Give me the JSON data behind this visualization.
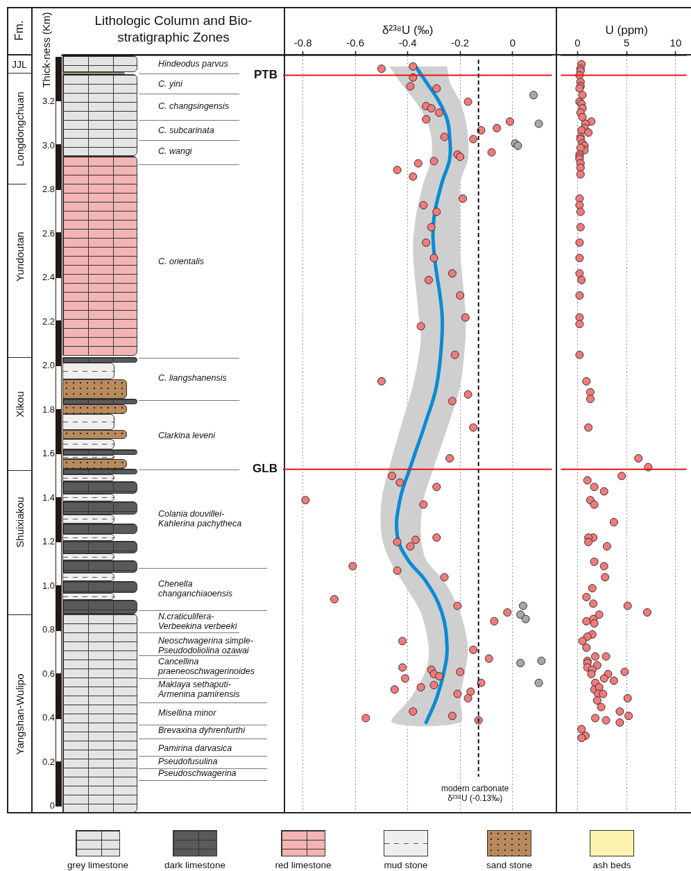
{
  "chart_data": [
    {
      "type": "other",
      "title": "Lithologic Column and Bio-stratigraphic Zones",
      "annotations": [
        "Fm.",
        "JJL",
        "Longdongchuan",
        "Yundoutan",
        "Xikou",
        "Shuixiakou",
        "Yangshan-Wulipo",
        "Hindeodus parvus",
        "C. yini",
        "C. changsingensis",
        "C. subcarinata",
        "C.  wangi",
        "C. orientalis",
        "C. liangshanensis",
        "Clarkina leveni",
        "Colania douvillei-\nKahlerina pachytheca",
        "Chenella\nchanganchiaoensis",
        "N.craticulifera-\nVerbeekina verbeeki",
        "Neoschwagerina simple-\nPseudodoliolina ozawai",
        "Cancellina\npraeneoschwagerinoides",
        "Maklaya sethaputi-\nArmenina pamirensis",
        "Misellina minor",
        "Brevaxina dyhrenfurthi",
        "Pamirina darvasica",
        "Pseudofusulina",
        "Pseudoschwagerina",
        "grey limestone",
        "dark limestone",
        "red limestone",
        "mud stone",
        "sand stone",
        "ash beds"
      ]
    },
    {
      "type": "scatter",
      "xlabel": "δ²³⁸U (‰)",
      "ylabel": "Thick-ness (Km)",
      "xticks": [
        -0.8,
        -0.6,
        -0.4,
        -0.2,
        0
      ],
      "ylim": [
        -0.03,
        3.41
      ],
      "yticks": [
        0,
        0.2,
        0.4,
        0.6,
        0.8,
        {
          "value": 1,
          "label": "1.0"
        },
        1.2,
        1.4,
        1.6,
        1.8,
        {
          "value": 2,
          "label": "2.0"
        },
        2.2,
        2.4,
        2.6,
        2.8,
        {
          "value": 3,
          "label": "3.0"
        },
        3.2
      ],
      "grid": "x",
      "marker": "circle",
      "xlim": [
        -1.72,
        0.15
      ],
      "series": [
        {
          "type": "scatter",
          "color": "#ef7b7b",
          "x": [
            -0.5,
            -0.38,
            -0.38,
            -0.39,
            -0.29,
            -0.17,
            -0.33,
            -0.31,
            -0.28,
            -0.33,
            -0.01,
            -0.06,
            -0.12,
            -0.26,
            -0.15,
            -0.08,
            -0.21,
            -0.2,
            -0.3,
            -0.36,
            -0.44,
            -0.38,
            -0.19,
            -0.34,
            -0.29,
            -0.31,
            -0.33,
            -0.3,
            -0.23,
            -0.32,
            -0.2,
            -0.18,
            -0.35,
            -0.22,
            -0.5,
            -0.17,
            -0.23,
            -0.15,
            -0.24,
            -0.46,
            -0.43,
            -0.29,
            -0.79,
            -0.34,
            -0.29,
            -0.37,
            -0.44,
            -0.39,
            -0.61,
            -0.44,
            -0.26,
            -0.68,
            -0.21,
            -0.02,
            -0.07,
            -0.42,
            -0.15,
            -0.09,
            -0.42,
            -0.31,
            -0.3,
            -0.28,
            -0.2,
            -0.41,
            -0.12,
            -0.3,
            -0.35,
            -0.45,
            -0.21,
            -0.16,
            -0.17,
            -0.38,
            -0.23,
            -0.13,
            -0.56
          ],
          "values": [
            3.35,
            3.36,
            3.31,
            3.27,
            3.26,
            3.2,
            3.18,
            3.17,
            3.15,
            3.12,
            3.11,
            3.08,
            3.07,
            3.04,
            3.03,
            2.97,
            2.96,
            2.95,
            2.93,
            2.92,
            2.89,
            2.86,
            2.76,
            2.73,
            2.7,
            2.63,
            2.56,
            2.49,
            2.42,
            2.39,
            2.32,
            2.22,
            2.18,
            2.05,
            1.93,
            1.87,
            1.84,
            1.72,
            1.58,
            1.5,
            1.47,
            1.45,
            1.39,
            1.37,
            1.22,
            1.21,
            1.2,
            1.18,
            1.09,
            1.07,
            1.04,
            0.94,
            0.91,
            0.88,
            0.84,
            0.75,
            0.71,
            0.67,
            0.63,
            0.62,
            0.6,
            0.59,
            0.61,
            0.58,
            0.56,
            0.55,
            0.54,
            0.53,
            0.51,
            0.52,
            0.49,
            0.43,
            0.41,
            0.39,
            0.4
          ]
        },
        {
          "type": "scatter",
          "color": "#a8a8a8",
          "x": [
            0.08,
            0.1,
            0.01,
            0.02,
            0.04,
            0.03,
            0.05,
            0.03,
            0.11,
            0.1
          ],
          "values": [
            3.23,
            3.1,
            3.01,
            3.0,
            0.91,
            0.87,
            0.85,
            0.65,
            0.66,
            0.56
          ]
        },
        {
          "type": "area",
          "color": "#cfcfcf",
          "marker": "none",
          "x": [
            -0.47,
            -0.43,
            -0.37,
            -0.33,
            -0.31,
            -0.31,
            -0.34,
            -0.37,
            -0.38,
            -0.36,
            -0.35,
            -0.38,
            -0.42,
            -0.47,
            -0.5,
            -0.5,
            -0.47,
            -0.42,
            -0.35,
            -0.32,
            -0.33,
            -0.39,
            -0.46,
            -0.2,
            -0.2,
            -0.18,
            -0.17,
            -0.2,
            -0.26,
            -0.33,
            -0.35,
            -0.34,
            -0.3,
            -0.24,
            -0.2,
            -0.18,
            -0.18,
            -0.2,
            -0.2,
            -0.2,
            -0.17,
            -0.17,
            -0.18,
            -0.2,
            -0.24,
            -0.25
          ],
          "values": [
            3.36,
            3.29,
            3.2,
            3.12,
            3.04,
            2.94,
            2.83,
            2.67,
            2.52,
            2.25,
            2.12,
            1.91,
            1.75,
            1.54,
            1.39,
            1.23,
            1.12,
            1.02,
            0.88,
            0.72,
            0.62,
            0.49,
            0.38,
            0.38,
            0.49,
            0.62,
            0.72,
            0.88,
            1.02,
            1.12,
            1.23,
            1.39,
            1.54,
            1.75,
            1.91,
            2.12,
            2.25,
            2.52,
            2.67,
            2.83,
            2.94,
            3.04,
            3.12,
            3.2,
            3.29,
            3.36
          ]
        },
        {
          "type": "line",
          "color": "#0a8bd6",
          "marker": "none",
          "x": [
            -0.37,
            -0.33,
            -0.28,
            -0.25,
            -0.24,
            -0.24,
            -0.27,
            -0.3,
            -0.3,
            -0.27,
            -0.27,
            -0.29,
            -0.33,
            -0.39,
            -0.43,
            -0.44,
            -0.4,
            -0.33,
            -0.27,
            -0.25,
            -0.26,
            -0.29,
            -0.33
          ],
          "values": [
            3.36,
            3.29,
            3.2,
            3.12,
            3.04,
            2.94,
            2.83,
            2.67,
            2.52,
            2.25,
            2.12,
            1.91,
            1.75,
            1.54,
            1.39,
            1.23,
            1.12,
            1.02,
            0.88,
            0.72,
            0.62,
            0.49,
            0.38
          ]
        }
      ],
      "ref_lines": [
        {
          "axis": "y",
          "value": 3.32,
          "label": "PTB",
          "color": "#e8141c",
          "line_style": "solid"
        },
        {
          "axis": "y",
          "value": 1.53,
          "label": "GLB",
          "color": "#e8141c",
          "line_style": "solid"
        },
        {
          "axis": "x",
          "value": -0.13,
          "label": "modern carbonate\nδ²³⁸U (-0.13‰)",
          "color": "#111111",
          "line_style": "dashed"
        }
      ]
    },
    {
      "type": "scatter",
      "xlabel": "U (ppm)",
      "xlim": [
        -1.7,
        11.1
      ],
      "xticks": [
        0,
        5,
        10
      ],
      "ylim": [
        -0.03,
        3.41
      ],
      "grid": "x",
      "marker": "circle",
      "tick_labels": "x",
      "series": [
        {
          "type": "scatter",
          "color": "#ef7b7b",
          "x": [
            0.4,
            0.3,
            0.3,
            0.2,
            0.3,
            0.3,
            0.2,
            0.5,
            0.2,
            0.4,
            0.5,
            0.3,
            0.5,
            1.4,
            0.8,
            0.7,
            0.4,
            1.1,
            0.3,
            0.3,
            0.5,
            0.7,
            0.7,
            0.3,
            0.2,
            0.2,
            0.2,
            0.3,
            0.3,
            0.3,
            0.2,
            0.2,
            0.3,
            0.3,
            0.2,
            0.2,
            0.2,
            0.4,
            0.2,
            0.2,
            0.2,
            0.2,
            0.9,
            1.3,
            1.3,
            1.1,
            6.2,
            7.2,
            4.5,
            1.0,
            1.7,
            2.7,
            1.3,
            1.7,
            3.7,
            1.6,
            1.1,
            1.1,
            3.0,
            1.7,
            2.7,
            2.8,
            1.5,
            0.9,
            1.6,
            5.1,
            7.1,
            2.2,
            0.9,
            1.6,
            1.7,
            1.5,
            1.0,
            0.5,
            0.9,
            1.8,
            2.9,
            1.0,
            1.0,
            1.0,
            2.0,
            1.5,
            1.4,
            4.8,
            3.1,
            2.7,
            3.7,
            1.8,
            1.7,
            2.2,
            2.1,
            2.6,
            5.1,
            2.0,
            2.4,
            4.3,
            5.2,
            1.8,
            2.9,
            4.3,
            0.4,
            0.8,
            0.4
          ],
          "values": [
            3.37,
            3.35,
            3.34,
            3.32,
            3.29,
            3.27,
            3.26,
            3.23,
            3.2,
            3.19,
            3.17,
            3.15,
            3.13,
            3.11,
            3.1,
            3.08,
            3.07,
            3.06,
            3.04,
            3.03,
            3.01,
            3.0,
            2.98,
            2.99,
            2.96,
            2.95,
            2.94,
            2.92,
            2.9,
            2.87,
            2.76,
            2.73,
            2.7,
            2.63,
            2.56,
            2.49,
            2.42,
            2.39,
            2.32,
            2.22,
            2.19,
            2.05,
            1.93,
            1.88,
            1.85,
            1.72,
            1.58,
            1.54,
            1.5,
            1.48,
            1.45,
            1.43,
            1.39,
            1.37,
            1.29,
            1.22,
            1.22,
            1.2,
            1.18,
            1.11,
            1.09,
            1.04,
            0.99,
            0.95,
            0.92,
            0.91,
            0.88,
            0.87,
            0.84,
            0.85,
            0.83,
            0.78,
            0.77,
            0.75,
            0.72,
            0.68,
            0.68,
            0.66,
            0.65,
            0.63,
            0.64,
            0.62,
            0.6,
            0.61,
            0.6,
            0.58,
            0.57,
            0.56,
            0.53,
            0.54,
            0.51,
            0.51,
            0.49,
            0.48,
            0.45,
            0.43,
            0.41,
            0.4,
            0.39,
            0.38,
            0.35,
            0.32,
            0.31
          ]
        }
      ],
      "ref_lines": [
        {
          "axis": "y",
          "value": 3.32,
          "color": "#e8141c",
          "line_style": "solid"
        },
        {
          "axis": "y",
          "value": 1.53,
          "color": "#e8141c",
          "line_style": "solid"
        }
      ]
    }
  ]
}
